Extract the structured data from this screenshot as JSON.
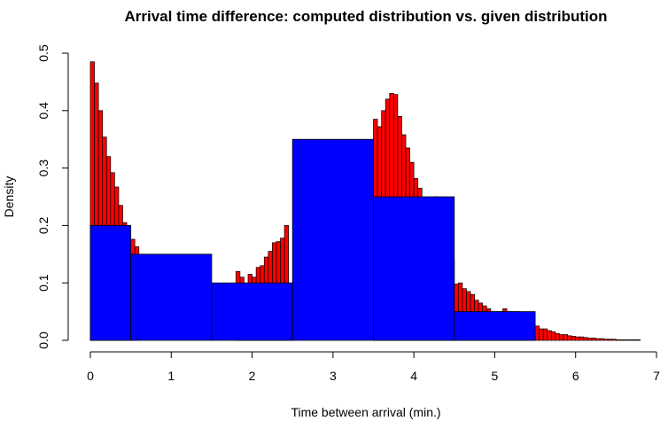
{
  "chart_data": {
    "type": "bar",
    "title": "Arrival time difference: computed distribution vs. given distribution",
    "xlabel": "Time between arrival (min.)",
    "ylabel": "Density",
    "xlim": [
      0,
      7
    ],
    "ylim": [
      0,
      0.5
    ],
    "x_ticks": [
      "0",
      "1",
      "2",
      "3",
      "4",
      "5",
      "6",
      "7"
    ],
    "y_ticks": [
      "0.0",
      "0.1",
      "0.2",
      "0.3",
      "0.4",
      "0.5"
    ],
    "grid": false,
    "legend": "none",
    "colors": {
      "computed": "#ff0000",
      "given": "#0000ff",
      "outline": "#000000"
    },
    "series": [
      {
        "type": "histogram",
        "bin_width": 0.05,
        "start": 0,
        "density": [
          0.485,
          0.448,
          0.4,
          0.354,
          0.32,
          0.292,
          0.267,
          0.235,
          0.205,
          0.19,
          0.176,
          0.163,
          0,
          0,
          0,
          0,
          0,
          0,
          0,
          0,
          0,
          0,
          0,
          0,
          0,
          0,
          0,
          0,
          0,
          0,
          0,
          0,
          0,
          0,
          0,
          0,
          0.12,
          0.11,
          0.1,
          0.115,
          0.11,
          0.127,
          0.13,
          0.145,
          0.155,
          0.17,
          0.172,
          0.178,
          0.2,
          0.1,
          0,
          0,
          0,
          0,
          0,
          0,
          0,
          0,
          0,
          0,
          0,
          0,
          0,
          0,
          0,
          0,
          0,
          0,
          0,
          0,
          0.385,
          0.372,
          0.4,
          0.42,
          0.43,
          0.428,
          0.39,
          0.358,
          0.335,
          0.31,
          0.282,
          0.265,
          0.235,
          0.222,
          0.218,
          0.25,
          0.2,
          0.18,
          0.16,
          0.14,
          0.098,
          0.1,
          0.09,
          0.085,
          0.08,
          0.07,
          0.065,
          0.06,
          0.055,
          0.05,
          0.05,
          0.05,
          0.055,
          0.05,
          0.05,
          0.05,
          0.045,
          0.04,
          0.035,
          0.03,
          0.025,
          0.02,
          0.02,
          0.017,
          0.015,
          0.012,
          0.01,
          0.01,
          0.008,
          0.007,
          0.006,
          0.006,
          0.005,
          0.004,
          0.004,
          0.003,
          0.003,
          0.002,
          0.002,
          0.002,
          0.001,
          0.001,
          0.001,
          0.001,
          0.001,
          0.001
        ]
      },
      {
        "type": "histogram",
        "bins": [
          {
            "from": 0,
            "to": 0.5,
            "density": 0.2
          },
          {
            "from": 0.5,
            "to": 1.5,
            "density": 0.15
          },
          {
            "from": 1.5,
            "to": 2.5,
            "density": 0.1
          },
          {
            "from": 2.5,
            "to": 3.5,
            "density": 0.35
          },
          {
            "from": 3.5,
            "to": 4.5,
            "density": 0.25
          },
          {
            "from": 4.5,
            "to": 5.5,
            "density": 0.05
          }
        ]
      }
    ]
  }
}
